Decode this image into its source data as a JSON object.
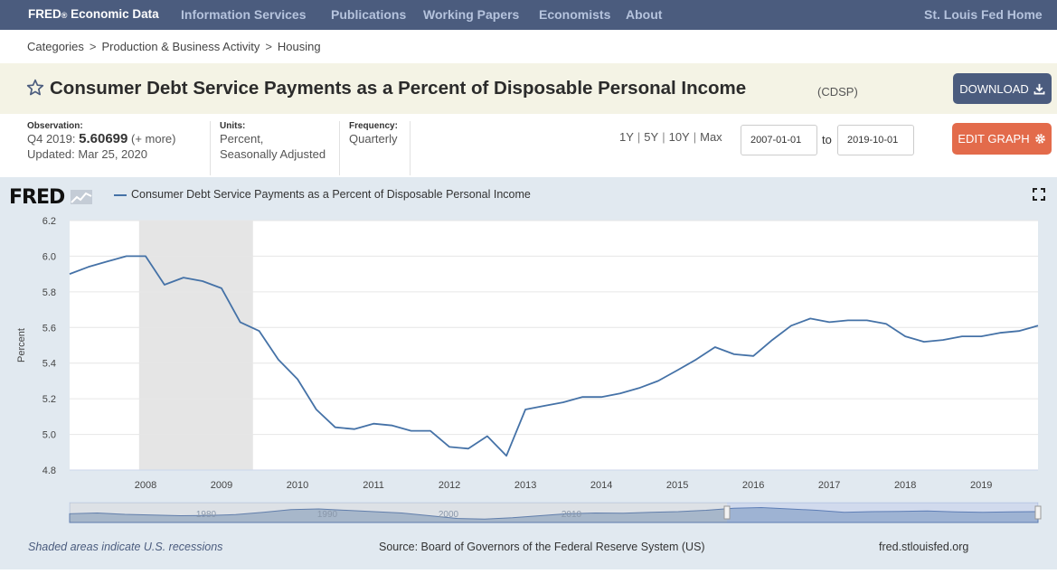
{
  "nav": {
    "brand_main": "FRED",
    "brand_reg": "®",
    "brand_rest": " Economic Data",
    "links": [
      "Information Services",
      "Publications",
      "Working Papers",
      "Economists",
      "About"
    ],
    "right_link": "St. Louis Fed Home"
  },
  "breadcrumb": [
    "Categories",
    "Production & Business Activity",
    "Housing"
  ],
  "series": {
    "title": "Consumer Debt Service Payments as a Percent of Disposable Personal Income",
    "id": "(CDSP)",
    "download_label": "DOWNLOAD"
  },
  "meta": {
    "observation_label": "Observation:",
    "observation_period": "Q4 2019:",
    "observation_value": "5.60699",
    "observation_more": "(+ more)",
    "updated": "Updated: Mar 25, 2020",
    "units_label": "Units:",
    "units_line1": "Percent,",
    "units_line2": "Seasonally Adjusted",
    "frequency_label": "Frequency:",
    "frequency_value": "Quarterly"
  },
  "controls": {
    "ranges": [
      "1Y",
      "5Y",
      "10Y",
      "Max"
    ],
    "start_date": "2007-01-01",
    "to_label": "to",
    "end_date": "2019-10-01",
    "edit_label": "EDIT GRAPH"
  },
  "graph": {
    "logo": "FRED",
    "legend": "Consumer Debt Service Payments as a Percent of Disposable Personal Income",
    "footer_left": "Shaded areas indicate U.S. recessions",
    "footer_center": "Source: Board of Governors of the Federal Reserve System (US)",
    "footer_right": "fred.stlouisfed.org"
  },
  "colors": {
    "nav_bg": "#4b5c7e",
    "line": "#4572a7",
    "recession": "#e5e5e5",
    "edit_button": "#e36b4b",
    "graph_bg": "#e1e9f0"
  },
  "chart_data": {
    "type": "line",
    "ylabel": "Percent",
    "ylim": [
      4.8,
      6.2
    ],
    "yticks": [
      4.8,
      5.0,
      5.2,
      5.4,
      5.6,
      5.8,
      6.0,
      6.2
    ],
    "xticks": [
      "2008",
      "2009",
      "2010",
      "2011",
      "2012",
      "2013",
      "2014",
      "2015",
      "2016",
      "2017",
      "2018",
      "2019"
    ],
    "xlim": [
      "2007-01-01",
      "2019-10-01"
    ],
    "recession": [
      "2007-12-01",
      "2009-06-01"
    ],
    "navigator_ticks": [
      "1980",
      "1990",
      "2000",
      "2010"
    ],
    "series": [
      {
        "name": "Consumer Debt Service Payments as a Percent of Disposable Personal Income",
        "x": [
          "2007-01-01",
          "2007-04-01",
          "2007-07-01",
          "2007-10-01",
          "2008-01-01",
          "2008-04-01",
          "2008-07-01",
          "2008-10-01",
          "2009-01-01",
          "2009-04-01",
          "2009-07-01",
          "2009-10-01",
          "2010-01-01",
          "2010-04-01",
          "2010-07-01",
          "2010-10-01",
          "2011-01-01",
          "2011-04-01",
          "2011-07-01",
          "2011-10-01",
          "2012-01-01",
          "2012-04-01",
          "2012-07-01",
          "2012-10-01",
          "2013-01-01",
          "2013-04-01",
          "2013-07-01",
          "2013-10-01",
          "2014-01-01",
          "2014-04-01",
          "2014-07-01",
          "2014-10-01",
          "2015-01-01",
          "2015-04-01",
          "2015-07-01",
          "2015-10-01",
          "2016-01-01",
          "2016-04-01",
          "2016-07-01",
          "2016-10-01",
          "2017-01-01",
          "2017-04-01",
          "2017-07-01",
          "2017-10-01",
          "2018-01-01",
          "2018-04-01",
          "2018-07-01",
          "2018-10-01",
          "2019-01-01",
          "2019-04-01",
          "2019-07-01",
          "2019-10-01"
        ],
        "values": [
          5.9,
          5.94,
          5.97,
          6.0,
          6.0,
          5.84,
          5.88,
          5.86,
          5.82,
          5.63,
          5.58,
          5.42,
          5.31,
          5.14,
          5.04,
          5.03,
          5.06,
          5.05,
          5.02,
          5.02,
          4.93,
          4.92,
          4.99,
          4.88,
          5.14,
          5.16,
          5.18,
          5.21,
          5.21,
          5.23,
          5.26,
          5.3,
          5.36,
          5.42,
          5.49,
          5.45,
          5.44,
          5.53,
          5.61,
          5.65,
          5.63,
          5.64,
          5.64,
          5.62,
          5.55,
          5.52,
          5.53,
          5.55,
          5.55,
          5.57,
          5.58,
          5.61
        ]
      }
    ]
  }
}
